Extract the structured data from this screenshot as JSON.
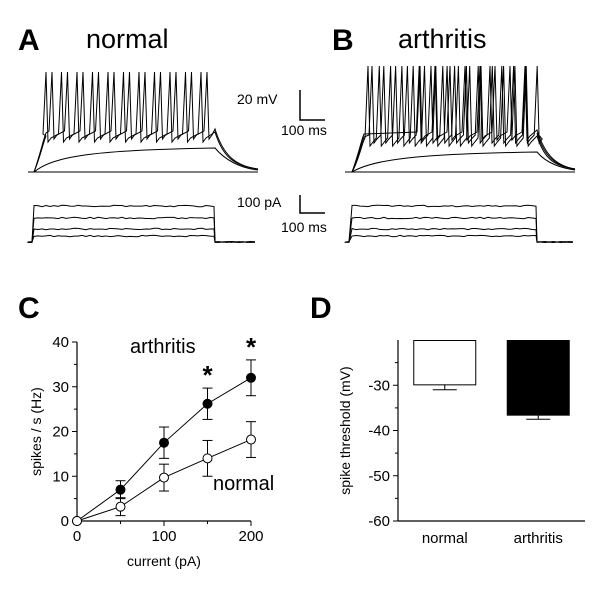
{
  "panels": {
    "a": {
      "letter": "A",
      "title": "normal"
    },
    "b": {
      "letter": "B",
      "title": "arthritis"
    },
    "c": {
      "letter": "C"
    },
    "d": {
      "letter": "D"
    }
  },
  "scale_bars": {
    "voltage": "20 mV",
    "time_top": "100 ms",
    "current": "100 pA",
    "time_bottom": "100 ms"
  },
  "chart_data": [
    {
      "type": "line",
      "panel": "C",
      "xlabel": "current (pA)",
      "ylabel": "spikes / s (Hz)",
      "xlim": [
        0,
        200
      ],
      "ylim": [
        0,
        40
      ],
      "x_ticks": [
        "0",
        "100",
        "200"
      ],
      "y_ticks": [
        "0",
        "10",
        "20",
        "30",
        "40"
      ],
      "x": [
        0,
        50,
        100,
        150,
        200
      ],
      "series": [
        {
          "name": "arthritis",
          "marker": "filled-circle",
          "values": [
            0,
            7,
            17.5,
            26.2,
            32
          ],
          "errors": [
            0,
            2,
            3.5,
            3.5,
            4
          ]
        },
        {
          "name": "normal",
          "marker": "open-circle",
          "values": [
            0,
            3.2,
            9.7,
            14,
            18.2
          ],
          "errors": [
            0,
            2,
            3,
            4,
            4
          ]
        }
      ],
      "annotations": [
        {
          "text": "*",
          "x": 150
        },
        {
          "text": "*",
          "x": 200
        }
      ]
    },
    {
      "type": "bar",
      "panel": "D",
      "ylabel": "spike threshold (mV)",
      "ylim": [
        -60,
        -20
      ],
      "y_ticks": [
        "-30",
        "-40",
        "-50",
        "-60"
      ],
      "categories": [
        "normal",
        "arthritis"
      ],
      "values": [
        -29.8,
        -36.5
      ],
      "errors": [
        1.2,
        1.0
      ],
      "colors": [
        "#ffffff",
        "#000000"
      ],
      "annotations": [
        {
          "text": "**",
          "category": "arthritis"
        }
      ]
    }
  ]
}
